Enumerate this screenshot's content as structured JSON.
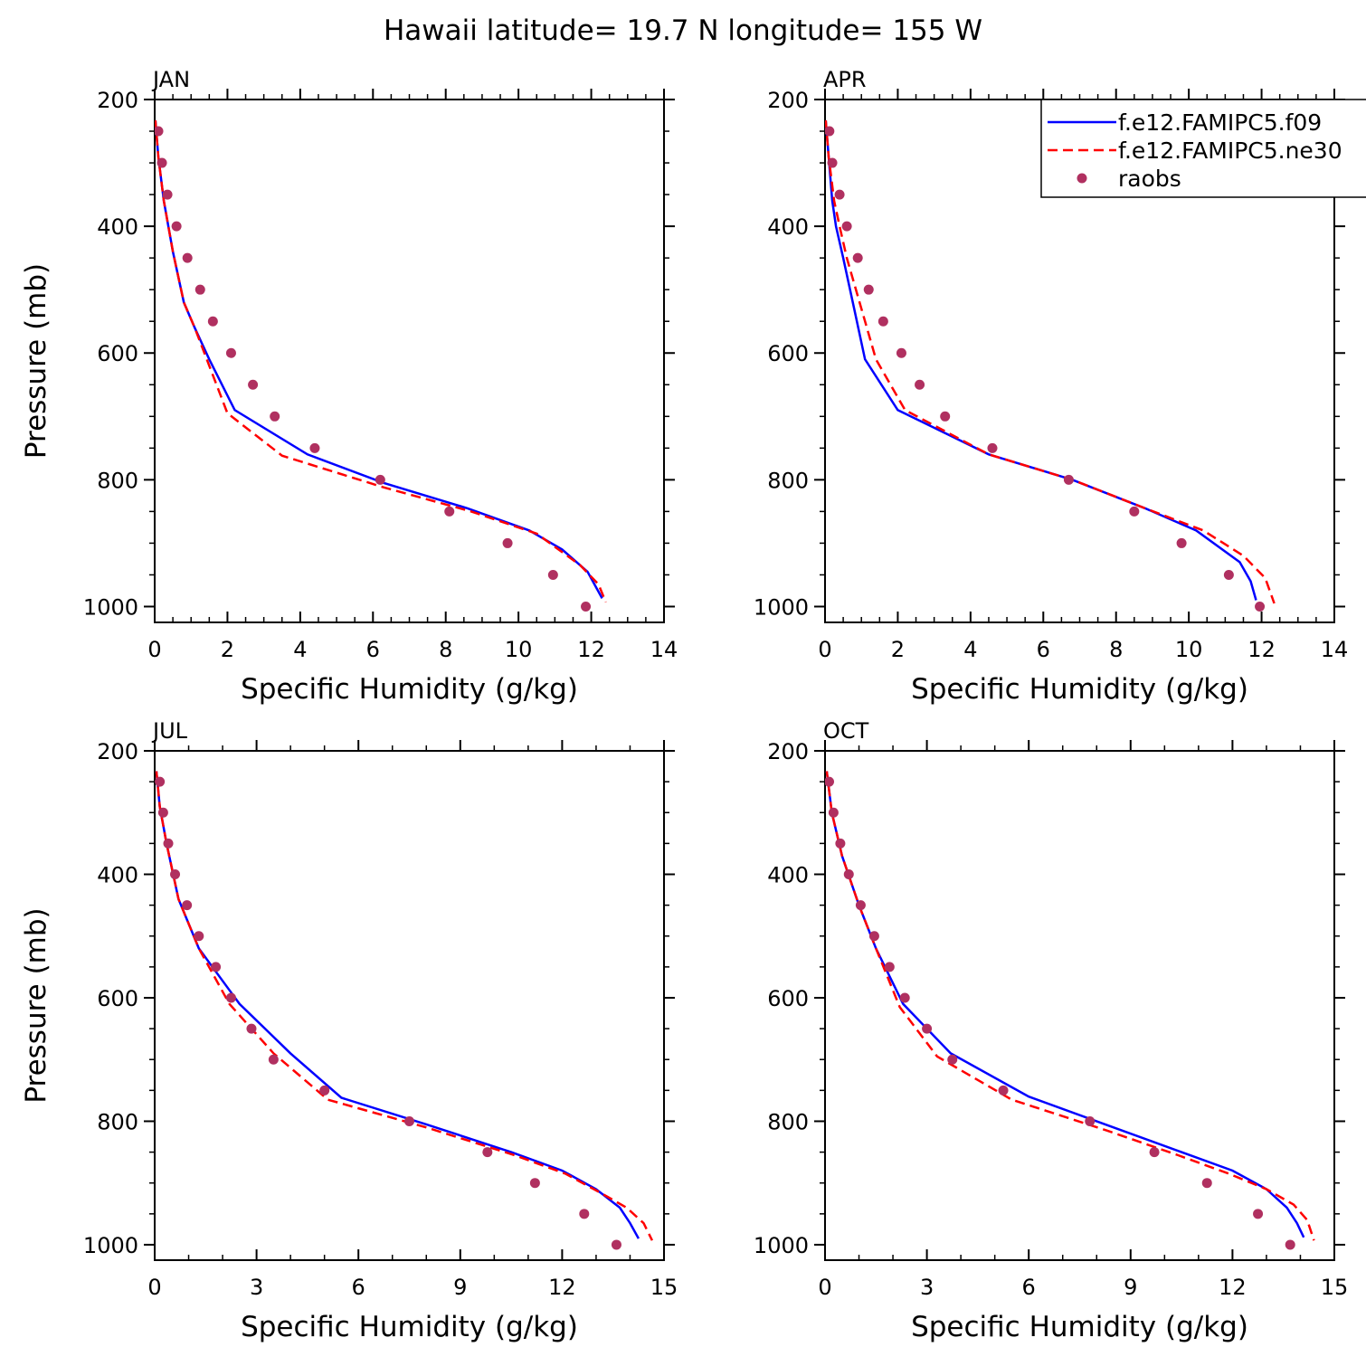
{
  "title": "Hawaii  latitude= 19.7 N longitude= 155 W",
  "legend": {
    "entries": [
      {
        "label": "f.e12.FAMIPC5.f09",
        "color": "#0000ff",
        "style": "solid"
      },
      {
        "label": "f.e12.FAMIPC5.ne30",
        "color": "#ff0000",
        "style": "dashed"
      },
      {
        "label": "raobs",
        "color": "#b03060",
        "style": "dot"
      }
    ]
  },
  "chart_data": [
    {
      "type": "line",
      "panel": "JAN",
      "xlabel": "Specific Humidity (g/kg)",
      "ylabel": "Pressure (mb)",
      "xlim": [
        0,
        14
      ],
      "ylim": [
        1025,
        200
      ],
      "xticks": [
        "0",
        "2",
        "4",
        "6",
        "8",
        "10",
        "12",
        "14"
      ],
      "yticks": [
        "200",
        "400",
        "600",
        "800",
        "1000"
      ],
      "ytick_values": [
        200,
        400,
        600,
        800,
        1000
      ],
      "series": [
        {
          "name": "f.e12.FAMIPC5.f09",
          "x": [
            0.02,
            0.1,
            0.25,
            0.5,
            0.8,
            1.1,
            1.5,
            2.2,
            4.2,
            6.3,
            8.6,
            10.3,
            11.2,
            11.9,
            12.3
          ],
          "y": [
            233,
            290,
            360,
            440,
            520,
            560,
            610,
            690,
            760,
            805,
            845,
            880,
            910,
            945,
            987
          ]
        },
        {
          "name": "f.e12.FAMIPC5.ne30",
          "x": [
            0.02,
            0.1,
            0.25,
            0.5,
            0.8,
            1.1,
            1.5,
            2.0,
            3.5,
            6.3,
            8.7,
            10.5,
            11.7,
            12.2,
            12.4
          ],
          "y": [
            233,
            290,
            360,
            440,
            520,
            560,
            620,
            695,
            762,
            812,
            850,
            885,
            935,
            965,
            993
          ]
        },
        {
          "name": "raobs",
          "x": [
            0.1,
            0.2,
            0.35,
            0.6,
            0.9,
            1.25,
            1.6,
            2.1,
            2.7,
            3.3,
            4.4,
            6.2,
            8.1,
            9.7,
            10.95,
            11.85
          ],
          "y": [
            250,
            300,
            350,
            400,
            450,
            500,
            550,
            600,
            650,
            700,
            750,
            800,
            850,
            900,
            950,
            1000
          ]
        }
      ]
    },
    {
      "type": "line",
      "panel": "APR",
      "xlabel": "Specific Humidity (g/kg)",
      "ylabel": "",
      "xlim": [
        0,
        14
      ],
      "ylim": [
        1025,
        200
      ],
      "xticks": [
        "0",
        "2",
        "4",
        "6",
        "8",
        "10",
        "12",
        "14"
      ],
      "yticks": [
        "200",
        "400",
        "600",
        "800",
        "1000"
      ],
      "ytick_values": [
        200,
        400,
        600,
        800,
        1000
      ],
      "series": [
        {
          "name": "f.e12.FAMIPC5.f09",
          "x": [
            0.02,
            0.1,
            0.2,
            0.3,
            0.5,
            0.8,
            1.1,
            2.0,
            4.5,
            6.8,
            8.8,
            10.2,
            11.4,
            11.7,
            11.85
          ],
          "y": [
            233,
            290,
            360,
            400,
            450,
            530,
            610,
            690,
            760,
            800,
            845,
            880,
            930,
            960,
            990
          ]
        },
        {
          "name": "f.e12.FAMIPC5.ne30",
          "x": [
            0.02,
            0.1,
            0.25,
            0.4,
            0.6,
            1.0,
            1.4,
            2.2,
            4.5,
            6.8,
            8.8,
            10.4,
            11.5,
            12.1,
            12.35
          ],
          "y": [
            233,
            290,
            360,
            400,
            450,
            530,
            610,
            690,
            760,
            800,
            845,
            880,
            920,
            955,
            995
          ]
        },
        {
          "name": "raobs",
          "x": [
            0.12,
            0.2,
            0.4,
            0.6,
            0.9,
            1.2,
            1.6,
            2.1,
            2.6,
            3.3,
            4.6,
            6.7,
            8.5,
            9.8,
            11.1,
            11.95
          ],
          "y": [
            250,
            300,
            350,
            400,
            450,
            500,
            550,
            600,
            650,
            700,
            750,
            800,
            850,
            900,
            950,
            1000
          ]
        }
      ]
    },
    {
      "type": "line",
      "panel": "JUL",
      "xlabel": "Specific Humidity (g/kg)",
      "ylabel": "Pressure (mb)",
      "xlim": [
        0,
        15
      ],
      "ylim": [
        1025,
        200
      ],
      "xticks": [
        "0",
        "3",
        "6",
        "9",
        "12",
        "15"
      ],
      "yticks": [
        "200",
        "400",
        "600",
        "800",
        "1000"
      ],
      "ytick_values": [
        200,
        400,
        600,
        800,
        1000
      ],
      "series": [
        {
          "name": "f.e12.FAMIPC5.f09",
          "x": [
            0.05,
            0.15,
            0.35,
            0.7,
            1.3,
            2.5,
            4.0,
            5.5,
            8.0,
            10.5,
            12.0,
            13.0,
            13.7,
            14.0,
            14.25
          ],
          "y": [
            233,
            290,
            350,
            440,
            520,
            610,
            690,
            762,
            805,
            850,
            880,
            910,
            940,
            965,
            990
          ]
        },
        {
          "name": "f.e12.FAMIPC5.ne30",
          "x": [
            0.05,
            0.15,
            0.35,
            0.7,
            1.3,
            2.2,
            3.5,
            5.1,
            8.0,
            10.6,
            12.1,
            13.1,
            13.9,
            14.4,
            14.65
          ],
          "y": [
            233,
            290,
            350,
            440,
            520,
            610,
            690,
            765,
            810,
            855,
            885,
            915,
            940,
            965,
            993
          ]
        },
        {
          "name": "raobs",
          "x": [
            0.15,
            0.25,
            0.4,
            0.6,
            0.95,
            1.3,
            1.8,
            2.25,
            2.85,
            3.5,
            5.0,
            7.5,
            9.8,
            11.2,
            12.65,
            13.6
          ],
          "y": [
            250,
            300,
            350,
            400,
            450,
            500,
            550,
            600,
            650,
            700,
            750,
            800,
            850,
            900,
            950,
            1000
          ]
        }
      ]
    },
    {
      "type": "line",
      "panel": "OCT",
      "xlabel": "Specific Humidity (g/kg)",
      "ylabel": "",
      "xlim": [
        0,
        15
      ],
      "ylim": [
        1025,
        200
      ],
      "xticks": [
        "0",
        "3",
        "6",
        "9",
        "12",
        "15"
      ],
      "yticks": [
        "200",
        "400",
        "600",
        "800",
        "1000"
      ],
      "ytick_values": [
        200,
        400,
        600,
        800,
        1000
      ],
      "series": [
        {
          "name": "f.e12.FAMIPC5.f09",
          "x": [
            0.05,
            0.2,
            0.5,
            1.0,
            1.5,
            2.3,
            3.7,
            6.0,
            8.5,
            10.5,
            12.0,
            13.0,
            13.6,
            13.9,
            14.1
          ],
          "y": [
            233,
            300,
            370,
            450,
            520,
            610,
            690,
            760,
            810,
            850,
            880,
            910,
            940,
            965,
            988
          ]
        },
        {
          "name": "f.e12.FAMIPC5.ne30",
          "x": [
            0.05,
            0.2,
            0.5,
            1.0,
            1.5,
            2.2,
            3.3,
            5.5,
            8.3,
            10.4,
            11.9,
            13.0,
            13.8,
            14.2,
            14.4
          ],
          "y": [
            233,
            300,
            370,
            450,
            520,
            615,
            695,
            765,
            815,
            855,
            885,
            910,
            935,
            960,
            993
          ]
        },
        {
          "name": "raobs",
          "x": [
            0.12,
            0.25,
            0.45,
            0.7,
            1.05,
            1.45,
            1.9,
            2.35,
            3.0,
            3.75,
            5.25,
            7.8,
            9.7,
            11.25,
            12.75,
            13.7
          ],
          "y": [
            250,
            300,
            350,
            400,
            450,
            500,
            550,
            600,
            650,
            700,
            750,
            800,
            850,
            900,
            950,
            1000
          ]
        }
      ]
    }
  ]
}
